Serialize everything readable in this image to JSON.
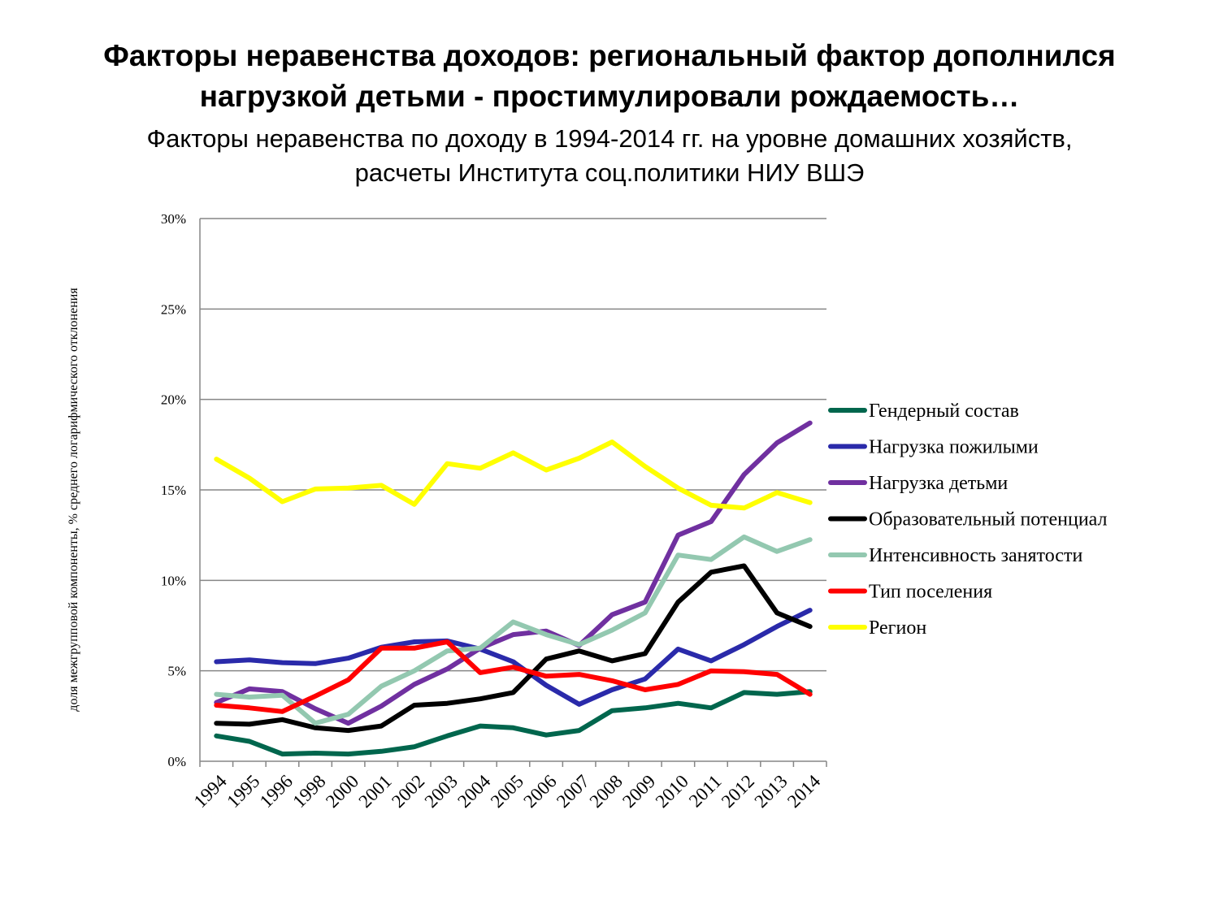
{
  "title_lines": [
    "Факторы неравенства доходов: региональный фактор дополнился",
    "нагрузкой детьми - простимулировали рождаемость…"
  ],
  "subtitle_lines": [
    "Факторы неравенства по доходу в 1994-2014 гг. на уровне домашних хозяйств,",
    "расчеты Института соц.политики НИУ ВШЭ"
  ],
  "chart_data": {
    "type": "line",
    "title": "",
    "xlabel": "",
    "ylabel": "доля межгрупповой компоненты, % среднего логарифмического отклонения",
    "ylim": [
      0,
      30
    ],
    "yticks": [
      0,
      5,
      10,
      15,
      20,
      25,
      30
    ],
    "ytick_labels": [
      "0%",
      "5%",
      "10%",
      "15%",
      "20%",
      "25%",
      "30%"
    ],
    "grid": "horizontal",
    "legend_position": "right",
    "categories": [
      "1994",
      "1995",
      "1996",
      "1998",
      "2000",
      "2001",
      "2002",
      "2003",
      "2004",
      "2005",
      "2006",
      "2007",
      "2008",
      "2009",
      "2010",
      "2011",
      "2012",
      "2013",
      "2014"
    ],
    "series": [
      {
        "name": "Гендерный состав",
        "color": "#00664d",
        "values": [
          1.4,
          1.1,
          0.4,
          0.45,
          0.4,
          0.55,
          0.8,
          1.4,
          1.95,
          1.85,
          1.45,
          1.7,
          2.8,
          2.95,
          3.2,
          2.95,
          3.8,
          3.7,
          3.85
        ]
      },
      {
        "name": "Нагрузка пожилыми",
        "color": "#2a2aaa",
        "values": [
          5.5,
          5.6,
          5.45,
          5.4,
          5.7,
          6.3,
          6.6,
          6.65,
          6.2,
          5.5,
          4.2,
          3.15,
          3.95,
          4.55,
          6.2,
          5.55,
          6.45,
          7.45,
          8.35
        ]
      },
      {
        "name": "Нагрузка детьми",
        "color": "#7030a0",
        "values": [
          3.25,
          4.0,
          3.85,
          2.9,
          2.1,
          3.05,
          4.25,
          5.1,
          6.25,
          7.0,
          7.2,
          6.4,
          8.1,
          8.8,
          12.5,
          13.25,
          15.85,
          17.6,
          18.7
        ]
      },
      {
        "name": "Образовательный потенциал",
        "color": "#000000",
        "values": [
          2.1,
          2.05,
          2.3,
          1.85,
          1.7,
          1.95,
          3.1,
          3.2,
          3.45,
          3.8,
          5.65,
          6.1,
          5.55,
          5.95,
          8.8,
          10.45,
          10.8,
          8.2,
          7.45
        ]
      },
      {
        "name": "Интенсивность занятости",
        "color": "#93c8b0",
        "values": [
          3.7,
          3.55,
          3.65,
          2.1,
          2.6,
          4.15,
          5.0,
          6.1,
          6.25,
          7.7,
          7.0,
          6.45,
          7.25,
          8.2,
          11.4,
          11.15,
          12.4,
          11.6,
          12.25
        ]
      },
      {
        "name": "Тип поселения",
        "color": "#ff0000",
        "values": [
          3.1,
          2.95,
          2.75,
          3.6,
          4.5,
          6.25,
          6.25,
          6.6,
          4.9,
          5.2,
          4.7,
          4.8,
          4.45,
          3.95,
          4.25,
          5.0,
          4.95,
          4.8,
          3.7
        ]
      },
      {
        "name": "Регион",
        "color": "#ffff00",
        "values": [
          16.7,
          15.65,
          14.35,
          15.05,
          15.1,
          15.25,
          14.2,
          16.45,
          16.2,
          17.05,
          16.1,
          16.75,
          17.65,
          16.3,
          15.1,
          14.15,
          14.0,
          14.85,
          14.3
        ]
      }
    ]
  }
}
